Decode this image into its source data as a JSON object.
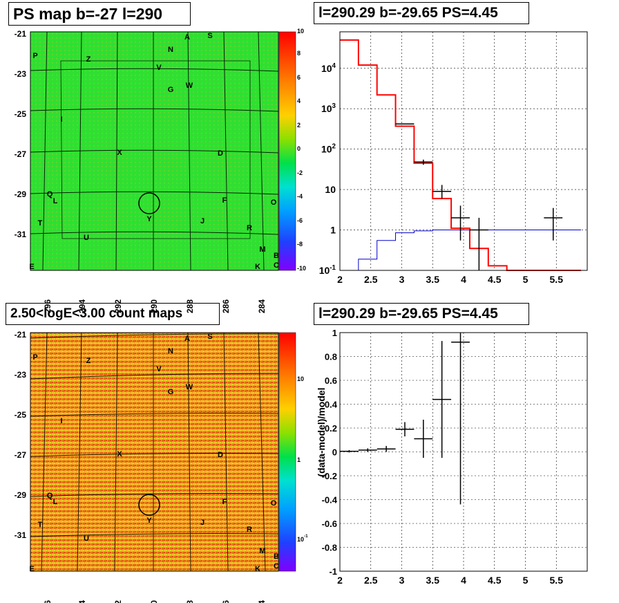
{
  "panels": {
    "top_left_title": "PS map b=-27 l=290",
    "top_right_title": "l=290.29 b=-29.65 PS=4.45",
    "bottom_left_title": "2.50<logE<3.00 count maps",
    "bottom_right_title": "l=290.29 b=-29.65 PS=4.45"
  },
  "colors": {
    "ps_map_bg": "#22e222",
    "count_map_bg": "#f09a1a",
    "data_hist": "#000000",
    "model_hist": "#ff0000",
    "bkg_hist": "#0000cc",
    "grid": "#000000"
  },
  "chart_data": [
    {
      "type": "heatmap",
      "name": "ps-map",
      "title": "PS map b=-27 l=290",
      "x_ticks": [
        "296",
        "294",
        "292",
        "290",
        "288",
        "286",
        "284"
      ],
      "y_ticks": [
        "-21",
        "-23",
        "-25",
        "-27",
        "-29",
        "-31"
      ],
      "colorbar_ticks": [
        "10",
        "8",
        "6",
        "4",
        "2",
        "0",
        "-2",
        "-4",
        "-6",
        "-8",
        "-10"
      ],
      "colorbar_range": [
        -10,
        10
      ],
      "source_labels": [
        "A",
        "S",
        "N",
        "P",
        "Z",
        "V",
        "G",
        "W",
        "I",
        "X",
        "D",
        "Q",
        "L",
        "F",
        "O",
        "T",
        "J",
        "R",
        "U",
        "M",
        "B",
        "E",
        "K",
        "C",
        "Y"
      ],
      "marked_source": {
        "l": 290.29,
        "b": -29.65,
        "label": "Y"
      }
    },
    {
      "type": "line",
      "name": "counts-spectrum",
      "title": "l=290.29 b=-29.65 PS=4.45",
      "xlabel": "",
      "ylabel": "",
      "xlim": [
        2,
        6
      ],
      "ylim": [
        0.1,
        80000
      ],
      "y_log": true,
      "x_ticks": [
        "2",
        "2.5",
        "3",
        "3.5",
        "4",
        "4.5",
        "5",
        "5.5"
      ],
      "y_ticks": [
        "10^-1",
        "1",
        "10",
        "10^2",
        "10^3",
        "10^4"
      ],
      "model_step": {
        "edges": [
          2.0,
          2.3,
          2.6,
          2.9,
          3.2,
          3.5,
          3.8,
          4.1,
          4.4,
          4.7,
          5.0,
          5.3,
          5.6,
          5.9
        ],
        "values": [
          50000,
          12000,
          2200,
          370,
          45,
          6,
          1.1,
          0.35,
          0.13,
          0.1,
          0.1,
          0.1,
          0.1
        ]
      },
      "background_step": {
        "edges": [
          2.0,
          2.3,
          2.6,
          2.9,
          3.2,
          3.5,
          3.8,
          4.1,
          4.4,
          4.7,
          5.0,
          5.3,
          5.6,
          5.9
        ],
        "values": [
          0.06,
          0.19,
          0.55,
          0.85,
          0.95,
          1.0,
          1.0,
          1.0,
          1.0,
          1.0,
          1.0,
          1.0,
          1.0
        ]
      },
      "data_points": [
        {
          "x": 3.05,
          "xerr": 0.15,
          "y": 420,
          "ylo": 420,
          "yhi": 420
        },
        {
          "x": 3.35,
          "xerr": 0.15,
          "y": 48,
          "ylo": 41,
          "yhi": 55
        },
        {
          "x": 3.65,
          "xerr": 0.15,
          "y": 9,
          "ylo": 6,
          "yhi": 13
        },
        {
          "x": 3.95,
          "xerr": 0.15,
          "y": 2,
          "ylo": 0.55,
          "yhi": 4
        },
        {
          "x": 4.25,
          "xerr": 0.15,
          "y": 1,
          "ylo": 0.1,
          "yhi": 2
        },
        {
          "x": 5.45,
          "xerr": 0.15,
          "y": 2,
          "ylo": 0.55,
          "yhi": 3.5
        }
      ]
    },
    {
      "type": "heatmap",
      "name": "count-map",
      "title": "2.50<logE<3.00 count maps",
      "x_ticks": [
        "296",
        "294",
        "292",
        "290",
        "288",
        "286",
        "284"
      ],
      "y_ticks": [
        "-21",
        "-23",
        "-25",
        "-27",
        "-29",
        "-31"
      ],
      "colorbar_ticks": [
        "10",
        "1",
        "10^-1"
      ],
      "colorbar_log": true
    },
    {
      "type": "scatter",
      "name": "residuals",
      "title": "l=290.29 b=-29.65 PS=4.45",
      "xlabel": "",
      "ylabel": "(data-model)/model",
      "xlim": [
        2,
        6
      ],
      "ylim": [
        -1,
        1
      ],
      "x_ticks": [
        "2",
        "2.5",
        "3",
        "3.5",
        "4",
        "4.5",
        "5",
        "5.5"
      ],
      "y_ticks": [
        "1",
        "0.8",
        "0.6",
        "0.4",
        "0.2",
        "0",
        "-0.2",
        "-0.4",
        "-0.6",
        "-0.8",
        "-1"
      ],
      "points": [
        {
          "x": 2.15,
          "xerr": 0.15,
          "y": 0.005,
          "ylo": -0.005,
          "yhi": 0.015
        },
        {
          "x": 2.45,
          "xerr": 0.15,
          "y": 0.015,
          "ylo": 0.0,
          "yhi": 0.03
        },
        {
          "x": 2.75,
          "xerr": 0.15,
          "y": 0.025,
          "ylo": 0.0,
          "yhi": 0.05
        },
        {
          "x": 3.05,
          "xerr": 0.15,
          "y": 0.19,
          "ylo": 0.13,
          "yhi": 0.25
        },
        {
          "x": 3.35,
          "xerr": 0.15,
          "y": 0.11,
          "ylo": -0.05,
          "yhi": 0.27
        },
        {
          "x": 3.65,
          "xerr": 0.15,
          "y": 0.44,
          "ylo": -0.05,
          "yhi": 0.93
        },
        {
          "x": 3.95,
          "xerr": 0.15,
          "y": 0.92,
          "ylo": -0.44,
          "yhi": 1.0
        }
      ]
    }
  ]
}
